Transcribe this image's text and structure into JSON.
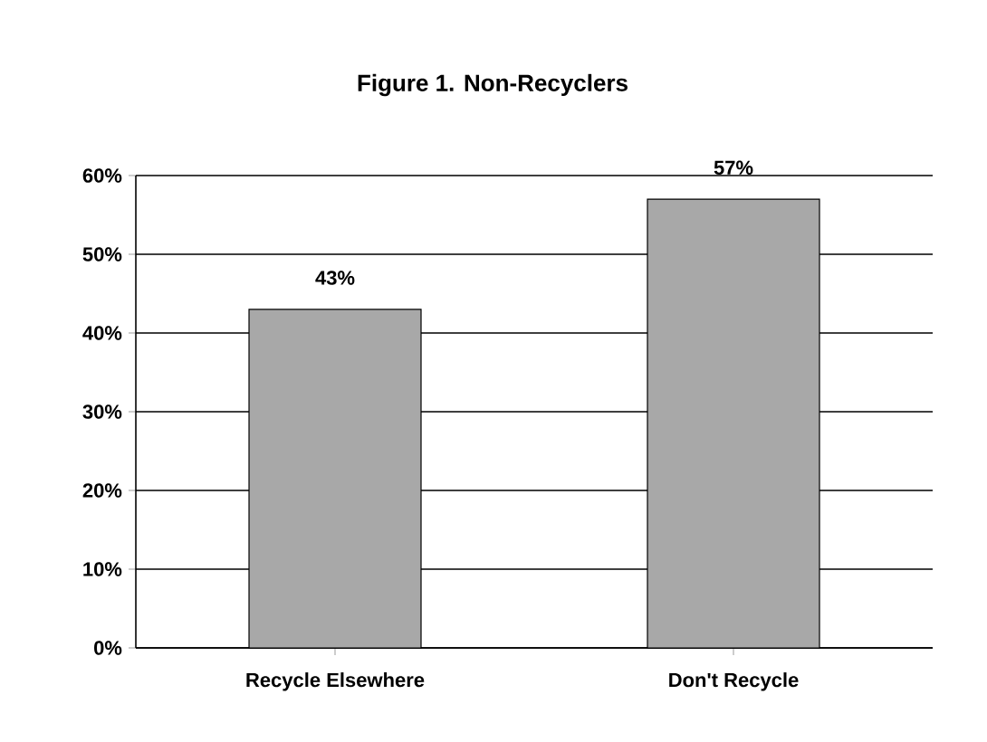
{
  "chart_data": {
    "type": "bar",
    "title": "Figure 1. Non-Recyclers",
    "categories": [
      "Recycle Elsewhere",
      "Don't Recycle"
    ],
    "values": [
      43,
      57
    ],
    "value_labels": [
      "43%",
      "57%"
    ],
    "color": "#a8a8a8",
    "ylim": [
      0,
      60
    ],
    "yticks": [
      {
        "value": 0,
        "label": "0%"
      },
      {
        "value": 10,
        "label": "10%"
      },
      {
        "value": 20,
        "label": "20%"
      },
      {
        "value": 30,
        "label": "30%"
      },
      {
        "value": 40,
        "label": "40%"
      },
      {
        "value": 50,
        "label": "50%"
      },
      {
        "value": 60,
        "label": "60%"
      }
    ],
    "grid": "y"
  }
}
